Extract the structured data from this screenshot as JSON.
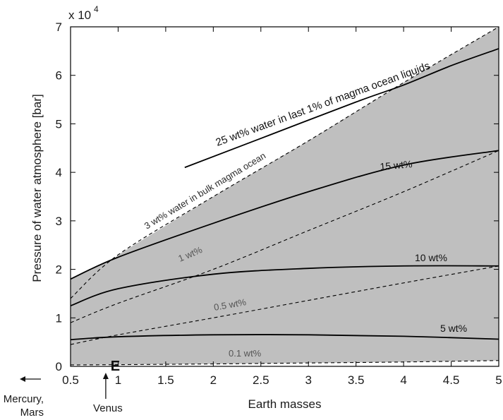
{
  "chart_data": {
    "type": "line",
    "title": "",
    "xlabel": "Earth masses",
    "ylabel": "Pressure of water atmosphere [bar]",
    "y_multiplier": "x 10",
    "y_multiplier_exp": "4",
    "xlim": [
      0.5,
      5
    ],
    "ylim": [
      0,
      70000
    ],
    "x_ticks": [
      "0.5",
      "1",
      "1.5",
      "2",
      "2.5",
      "3",
      "3.5",
      "4",
      "4.5",
      "5"
    ],
    "y_ticks": [
      "0",
      "1",
      "2",
      "3",
      "4",
      "5",
      "6",
      "7"
    ],
    "grid": false,
    "shaded_region_color": "#bfbfbf",
    "series": [
      {
        "name": "25 wt% water in last 1% of magma ocean liquids",
        "style": "solid",
        "x": [
          1.7,
          2.5,
          3.5,
          4.0,
          4.5,
          5.0
        ],
        "y": [
          41000,
          47000,
          54500,
          58000,
          62000,
          65500
        ]
      },
      {
        "name": "15 wt%",
        "style": "solid",
        "x": [
          0.5,
          1.0,
          2.0,
          3.0,
          4.0,
          5.0
        ],
        "y": [
          18000,
          22500,
          29500,
          36000,
          41500,
          44500
        ]
      },
      {
        "name": "10 wt%",
        "style": "solid",
        "x": [
          0.5,
          1.0,
          2.0,
          3.0,
          4.0,
          5.0
        ],
        "y": [
          12500,
          16000,
          19000,
          20200,
          20700,
          20700
        ]
      },
      {
        "name": "5 wt%",
        "style": "solid",
        "x": [
          0.5,
          1.0,
          2.0,
          3.0,
          4.0,
          5.0
        ],
        "y": [
          5500,
          6100,
          6500,
          6500,
          6200,
          5600
        ]
      },
      {
        "name": "3 wt% water in bulk magma ocean",
        "style": "dashed",
        "x": [
          0.5,
          1.0,
          2.0,
          3.0,
          4.0,
          5.0
        ],
        "y": [
          14000,
          23000,
          35000,
          46500,
          58500,
          70000
        ]
      },
      {
        "name": "1 wt%",
        "style": "dashed",
        "x": [
          0.5,
          1.0,
          2.0,
          3.0,
          4.0,
          5.0
        ],
        "y": [
          9000,
          13000,
          20000,
          28000,
          36000,
          44500
        ]
      },
      {
        "name": "0.5 wt%",
        "style": "dashed",
        "x": [
          0.5,
          1.0,
          2.0,
          3.0,
          4.0,
          5.0
        ],
        "y": [
          4500,
          6500,
          10000,
          13600,
          17200,
          20700
        ]
      },
      {
        "name": "0.1 wt%",
        "style": "dashed",
        "x": [
          0.5,
          1.0,
          2.0,
          3.0,
          4.0,
          5.0
        ],
        "y": [
          300,
          350,
          500,
          700,
          900,
          1200
        ]
      }
    ],
    "annotations": [
      {
        "text": "E",
        "x": 0.97,
        "y": 0
      },
      {
        "text": "Mercury,",
        "arrow": "left"
      },
      {
        "text": "Mars",
        "arrow": "left"
      },
      {
        "text": "Venus",
        "x": 0.87,
        "arrow": "up"
      }
    ]
  }
}
